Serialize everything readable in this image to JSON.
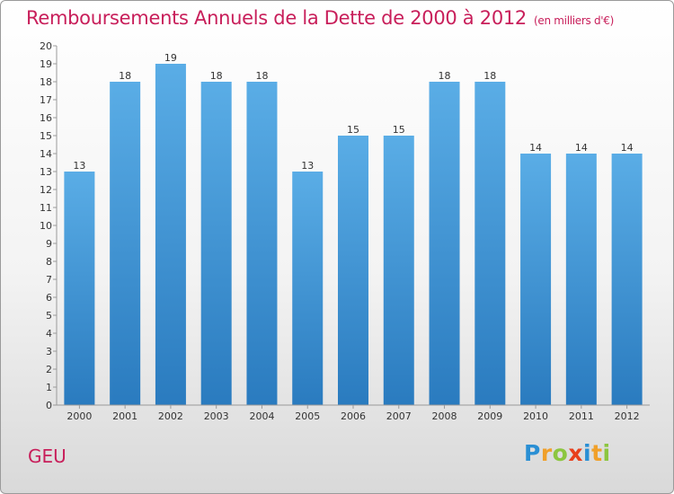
{
  "title": "Remboursements Annuels de la Dette de 2000 à 2012",
  "unit": "(en milliers d'€)",
  "commune": "GEU",
  "logo": {
    "letters": [
      {
        "ch": "P",
        "color": "#2a8fd4"
      },
      {
        "ch": "r",
        "color": "#f0a02a"
      },
      {
        "ch": "o",
        "color": "#8cc63f"
      },
      {
        "ch": "x",
        "color": "#e8401c"
      },
      {
        "ch": "i",
        "color": "#2a8fd4"
      },
      {
        "ch": "t",
        "color": "#f0a02a"
      },
      {
        "ch": "i",
        "color": "#8cc63f"
      }
    ]
  },
  "chart_data": {
    "type": "bar",
    "categories": [
      "2000",
      "2001",
      "2002",
      "2003",
      "2004",
      "2005",
      "2006",
      "2007",
      "2008",
      "2009",
      "2010",
      "2011",
      "2012"
    ],
    "values": [
      13,
      18,
      19,
      18,
      18,
      13,
      15,
      15,
      18,
      18,
      14,
      14,
      14
    ],
    "ylim": [
      0,
      20
    ],
    "yticks": [
      0,
      1,
      2,
      3,
      4,
      5,
      6,
      7,
      8,
      9,
      10,
      11,
      12,
      13,
      14,
      15,
      16,
      17,
      18,
      19,
      20
    ],
    "grid": false,
    "bar_color_top": "#5aade6",
    "bar_color_bottom": "#2a7bbf"
  }
}
